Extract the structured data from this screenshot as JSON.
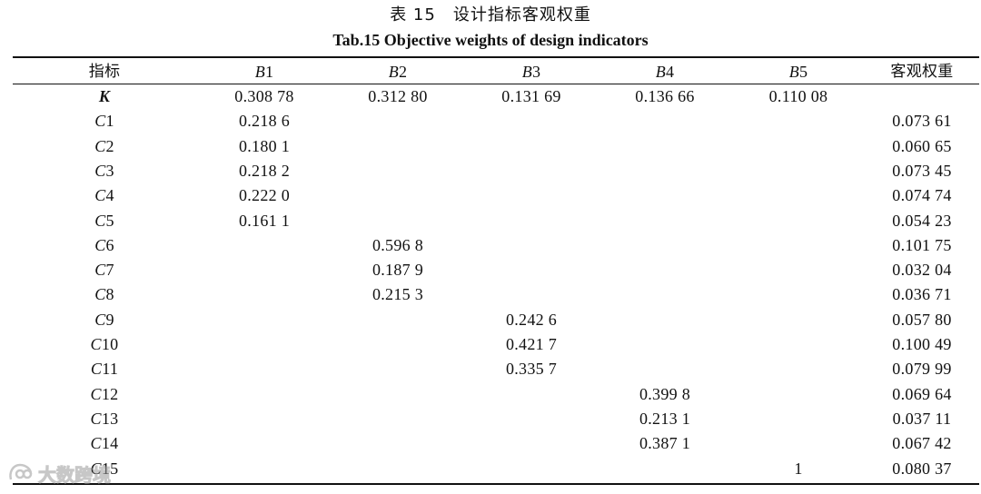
{
  "caption": {
    "cn": "表 15　设计指标客观权重",
    "en": "Tab.15 Objective weights of design indicators"
  },
  "header": {
    "col0": "指标",
    "col1": {
      "letter": "B",
      "num": "1"
    },
    "col2": {
      "letter": "B",
      "num": "2"
    },
    "col3": {
      "letter": "B",
      "num": "3"
    },
    "col4": {
      "letter": "B",
      "num": "4"
    },
    "col5": {
      "letter": "B",
      "num": "5"
    },
    "col6": "客观权重"
  },
  "rows": [
    {
      "letter": "K",
      "num": "",
      "v": [
        "0.308 78",
        "0.312 80",
        "0.131 69",
        "0.136 66",
        "0.110 08",
        ""
      ]
    },
    {
      "letter": "C",
      "num": "1",
      "v": [
        "0.218 6",
        "",
        "",
        "",
        "",
        "0.073 61"
      ]
    },
    {
      "letter": "C",
      "num": "2",
      "v": [
        "0.180 1",
        "",
        "",
        "",
        "",
        "0.060 65"
      ]
    },
    {
      "letter": "C",
      "num": "3",
      "v": [
        "0.218 2",
        "",
        "",
        "",
        "",
        "0.073 45"
      ]
    },
    {
      "letter": "C",
      "num": "4",
      "v": [
        "0.222 0",
        "",
        "",
        "",
        "",
        "0.074 74"
      ]
    },
    {
      "letter": "C",
      "num": "5",
      "v": [
        "0.161 1",
        "",
        "",
        "",
        "",
        "0.054 23"
      ]
    },
    {
      "letter": "C",
      "num": "6",
      "v": [
        "",
        "0.596 8",
        "",
        "",
        "",
        "0.101 75"
      ]
    },
    {
      "letter": "C",
      "num": "7",
      "v": [
        "",
        "0.187 9",
        "",
        "",
        "",
        "0.032 04"
      ]
    },
    {
      "letter": "C",
      "num": "8",
      "v": [
        "",
        "0.215 3",
        "",
        "",
        "",
        "0.036 71"
      ]
    },
    {
      "letter": "C",
      "num": "9",
      "v": [
        "",
        "",
        "0.242 6",
        "",
        "",
        "0.057 80"
      ]
    },
    {
      "letter": "C",
      "num": "10",
      "v": [
        "",
        "",
        "0.421 7",
        "",
        "",
        "0.100 49"
      ]
    },
    {
      "letter": "C",
      "num": "11",
      "v": [
        "",
        "",
        "0.335 7",
        "",
        "",
        "0.079 99"
      ]
    },
    {
      "letter": "C",
      "num": "12",
      "v": [
        "",
        "",
        "",
        "0.399 8",
        "",
        "0.069 64"
      ]
    },
    {
      "letter": "C",
      "num": "13",
      "v": [
        "",
        "",
        "",
        "0.213 1",
        "",
        "0.037 11"
      ]
    },
    {
      "letter": "C",
      "num": "14",
      "v": [
        "",
        "",
        "",
        "0.387 1",
        "",
        "0.067 42"
      ]
    },
    {
      "letter": "C",
      "num": "15",
      "v": [
        "",
        "",
        "",
        "",
        "1",
        "0.080 37"
      ]
    }
  ],
  "watermark": {
    "text": "大数跨境",
    "icon": "brand-logo-icon"
  }
}
